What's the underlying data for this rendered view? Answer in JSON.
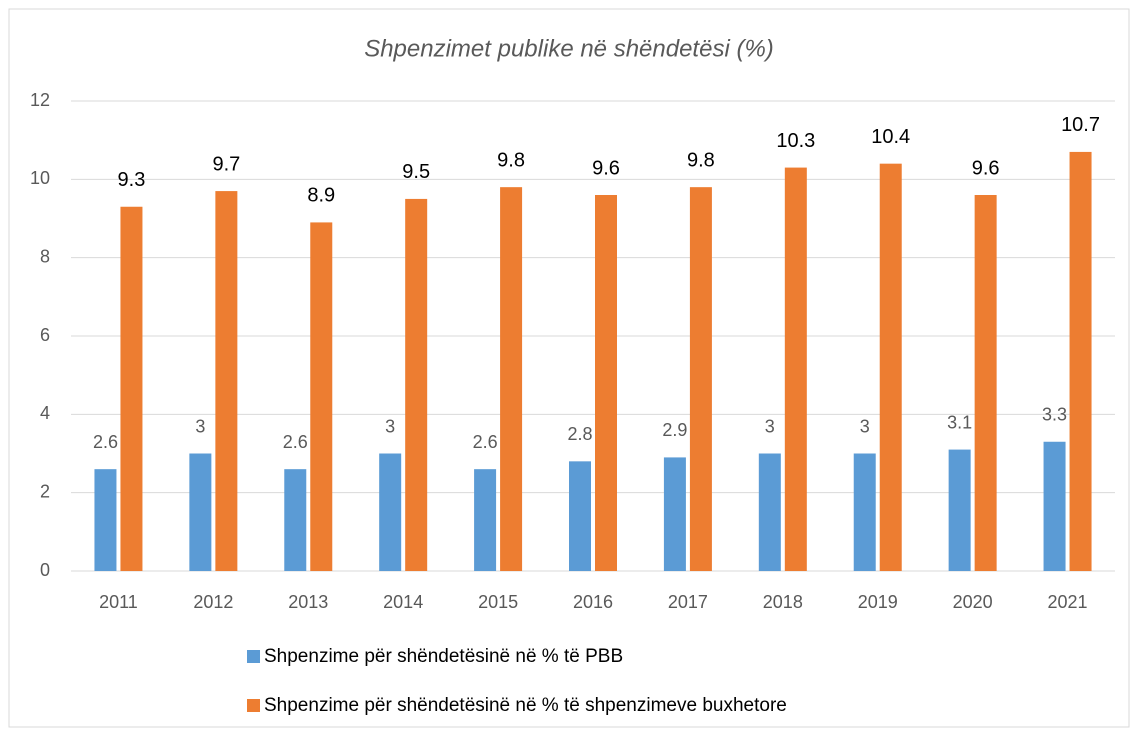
{
  "chart_data": {
    "type": "bar",
    "title": "Shpenzimet publike në shëndetësi (%)",
    "categories": [
      "2011",
      "2012",
      "2013",
      "2014",
      "2015",
      "2016",
      "2017",
      "2018",
      "2019",
      "2020",
      "2021"
    ],
    "series": [
      {
        "name": "Shpenzime për shëndetësinë në % të PBB",
        "color": "#5b9bd5",
        "values": [
          2.6,
          3,
          2.6,
          3,
          2.6,
          2.8,
          2.9,
          3,
          3,
          3.1,
          3.3
        ]
      },
      {
        "name": "Shpenzime për shëndetësinë në % të shpenzimeve buxhetore",
        "color": "#ed7d31",
        "values": [
          9.3,
          9.7,
          8.9,
          9.5,
          9.8,
          9.6,
          9.8,
          10.3,
          10.4,
          9.6,
          10.7
        ]
      }
    ],
    "ylim": [
      0,
      12
    ],
    "yticks": [
      0,
      2,
      4,
      6,
      8,
      10,
      12
    ],
    "grid": true,
    "legend": "bottom"
  }
}
